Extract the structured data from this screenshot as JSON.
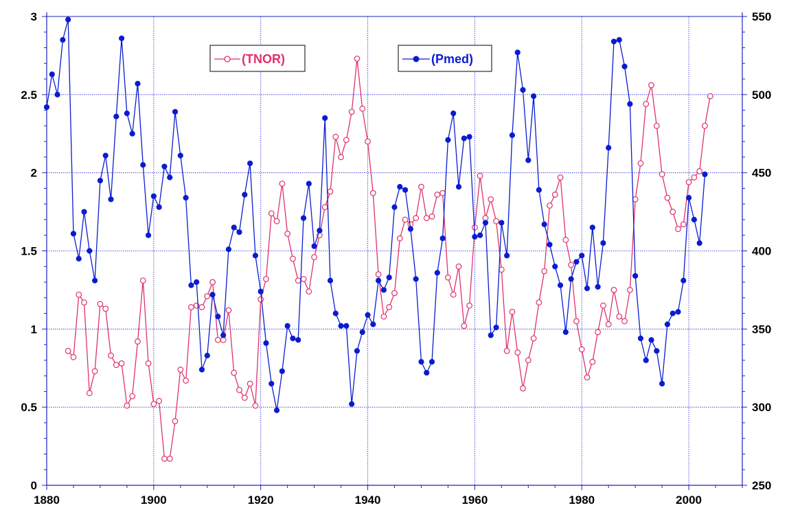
{
  "chart_data": {
    "type": "line",
    "title": "",
    "xlabel": "",
    "ylabel": "",
    "y2label": "",
    "xlim": [
      1880,
      2010
    ],
    "ylim": [
      0,
      3
    ],
    "y2lim": [
      250,
      550
    ],
    "grid": true,
    "legend_placement": "top-center",
    "x_ticks": [
      1880,
      1900,
      1920,
      1940,
      1960,
      1980,
      2000
    ],
    "y_ticks": [
      0,
      0.5,
      1,
      1.5,
      2,
      2.5,
      3
    ],
    "y_tick_labels": [
      "0",
      "0.5",
      "1",
      "1.5",
      "2",
      "2.5",
      "3"
    ],
    "y2_ticks": [
      250,
      300,
      350,
      400,
      450,
      500,
      550
    ],
    "colors": {
      "TNOR": "#e0306a",
      "Pmed": "#0a1cd0",
      "grid": "#2a2ad0",
      "axis": "#2020c0"
    },
    "series": [
      {
        "name": "(TNOR)",
        "axis": "left",
        "marker": "open-circle",
        "x": [
          1884,
          1885,
          1886,
          1887,
          1888,
          1889,
          1890,
          1891,
          1892,
          1893,
          1894,
          1895,
          1896,
          1897,
          1898,
          1899,
          1900,
          1901,
          1902,
          1903,
          1904,
          1905,
          1906,
          1907,
          1908,
          1909,
          1910,
          1911,
          1912,
          1913,
          1914,
          1915,
          1916,
          1917,
          1918,
          1919,
          1920,
          1921,
          1922,
          1923,
          1924,
          1925,
          1926,
          1927,
          1928,
          1929,
          1930,
          1931,
          1932,
          1933,
          1934,
          1935,
          1936,
          1937,
          1938,
          1939,
          1940,
          1941,
          1942,
          1943,
          1944,
          1945,
          1946,
          1947,
          1948,
          1949,
          1950,
          1951,
          1952,
          1953,
          1954,
          1955,
          1956,
          1957,
          1958,
          1959,
          1960,
          1961,
          1962,
          1963,
          1964,
          1965,
          1966,
          1967,
          1968,
          1969,
          1970,
          1971,
          1972,
          1973,
          1974,
          1975,
          1976,
          1977,
          1978,
          1979,
          1980,
          1981,
          1982,
          1983,
          1984,
          1985,
          1986,
          1987,
          1988,
          1989,
          1990,
          1991,
          1992,
          1993,
          1994,
          1995,
          1996,
          1997,
          1998,
          1999,
          2000,
          2001,
          2002,
          2003,
          2004
        ],
        "values": [
          0.86,
          0.82,
          1.22,
          1.17,
          0.59,
          0.73,
          1.16,
          1.13,
          0.83,
          0.77,
          0.78,
          0.51,
          0.57,
          0.92,
          1.31,
          0.78,
          0.52,
          0.54,
          0.17,
          0.17,
          0.41,
          0.74,
          0.67,
          1.14,
          1.15,
          1.14,
          1.21,
          1.3,
          0.93,
          0.93,
          1.12,
          0.72,
          0.61,
          0.56,
          0.65,
          0.51,
          1.19,
          1.32,
          1.74,
          1.69,
          1.93,
          1.61,
          1.45,
          1.31,
          1.32,
          1.24,
          1.46,
          1.6,
          1.78,
          1.88,
          2.23,
          2.1,
          2.21,
          2.39,
          2.73,
          2.41,
          2.2,
          1.87,
          1.35,
          1.08,
          1.14,
          1.23,
          1.58,
          1.7,
          1.67,
          1.71,
          1.91,
          1.71,
          1.72,
          1.86,
          1.87,
          1.33,
          1.22,
          1.4,
          1.02,
          1.15,
          1.65,
          1.98,
          1.71,
          1.83,
          1.69,
          1.38,
          0.86,
          1.11,
          0.85,
          0.62,
          0.8,
          0.94,
          1.17,
          1.37,
          1.79,
          1.86,
          1.97,
          1.57,
          1.41,
          1.05,
          0.87,
          0.69,
          0.79,
          0.98,
          1.15,
          1.03,
          1.25,
          1.08,
          1.05,
          1.25,
          1.83,
          2.06,
          2.44,
          2.56,
          2.3,
          1.99,
          1.84,
          1.75,
          1.64,
          1.67,
          1.94,
          1.97,
          2.01,
          2.3,
          2.49
        ]
      },
      {
        "name": "(Pmed)",
        "axis": "right",
        "marker": "filled-circle",
        "x": [
          1880,
          1881,
          1882,
          1883,
          1884,
          1885,
          1886,
          1887,
          1888,
          1889,
          1890,
          1891,
          1892,
          1893,
          1894,
          1895,
          1896,
          1897,
          1898,
          1899,
          1900,
          1901,
          1902,
          1903,
          1904,
          1905,
          1906,
          1907,
          1908,
          1909,
          1910,
          1911,
          1912,
          1913,
          1914,
          1915,
          1916,
          1917,
          1918,
          1919,
          1920,
          1921,
          1922,
          1923,
          1924,
          1925,
          1926,
          1927,
          1928,
          1929,
          1930,
          1931,
          1932,
          1933,
          1934,
          1935,
          1936,
          1937,
          1938,
          1939,
          1940,
          1941,
          1942,
          1943,
          1944,
          1945,
          1946,
          1947,
          1948,
          1949,
          1950,
          1951,
          1952,
          1953,
          1954,
          1955,
          1956,
          1957,
          1958,
          1959,
          1960,
          1961,
          1962,
          1963,
          1964,
          1965,
          1966,
          1967,
          1968,
          1969,
          1970,
          1971,
          1972,
          1973,
          1974,
          1975,
          1976,
          1977,
          1978,
          1979,
          1980,
          1981,
          1982,
          1983,
          1984,
          1985,
          1986,
          1987,
          1988,
          1989,
          1990,
          1991,
          1992,
          1993,
          1994,
          1995,
          1996,
          1997,
          1998,
          1999,
          2000,
          2001,
          2002,
          2003
        ],
        "values": [
          492,
          513,
          500,
          535,
          548,
          411,
          395,
          425,
          400,
          381,
          445,
          461,
          433,
          486,
          536,
          488,
          475,
          507,
          455,
          410,
          435,
          428,
          454,
          447,
          489,
          461,
          434,
          378,
          380,
          324,
          333,
          372,
          358,
          346,
          401,
          415,
          412,
          436,
          456,
          397,
          374,
          341,
          315,
          298,
          323,
          352,
          344,
          343,
          421,
          443,
          403,
          413,
          485,
          381,
          360,
          352,
          352,
          302,
          336,
          348,
          359,
          353,
          381,
          375,
          383,
          428,
          441,
          439,
          414,
          382,
          329,
          322,
          329,
          386,
          408,
          471,
          488,
          441,
          472,
          473,
          409,
          410,
          418,
          346,
          351,
          418,
          397,
          474,
          527,
          503,
          458,
          499,
          439,
          417,
          404,
          390,
          378,
          348,
          382,
          393,
          397,
          376,
          415,
          377,
          405,
          466,
          534,
          535,
          518,
          494,
          384,
          344,
          330,
          343,
          336,
          315,
          353,
          360,
          361,
          381,
          434,
          420,
          405,
          449
        ]
      }
    ]
  },
  "legend": {
    "tnor_label": "(TNOR)",
    "pmed_label": "(Pmed)"
  }
}
